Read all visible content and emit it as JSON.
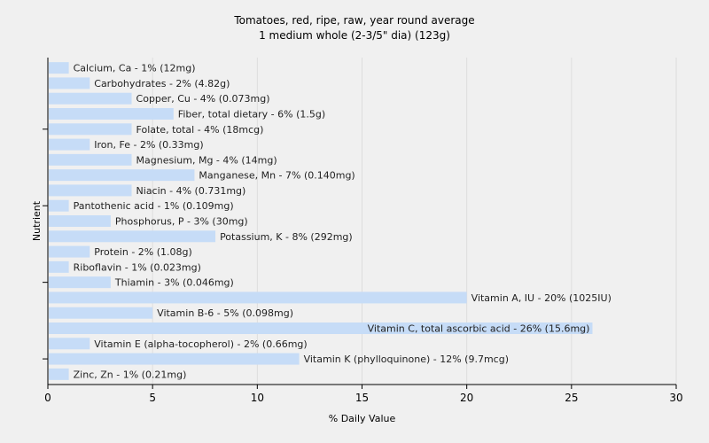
{
  "chart_data": {
    "type": "bar",
    "orientation": "horizontal",
    "title": "Tomatoes, red, ripe, raw, year round average",
    "subtitle": "1 medium whole (2-3/5\" dia) (123g)",
    "xlabel": "% Daily Value",
    "ylabel": "Nutrient",
    "xlim": [
      0,
      30
    ],
    "xticks": [
      0,
      5,
      10,
      15,
      20,
      25,
      30
    ],
    "grid": true,
    "bar_color": "#c6dcf7",
    "grid_color": "#dddddd",
    "background": "#f0f0f0",
    "categories": [
      "Calcium, Ca",
      "Carbohydrates",
      "Copper, Cu",
      "Fiber, total dietary",
      "Folate, total",
      "Iron, Fe",
      "Magnesium, Mg",
      "Manganese, Mn",
      "Niacin",
      "Pantothenic acid",
      "Phosphorus, P",
      "Potassium, K",
      "Protein",
      "Riboflavin",
      "Thiamin",
      "Vitamin A, IU",
      "Vitamin B-6",
      "Vitamin C, total ascorbic acid",
      "Vitamin E (alpha-tocopherol)",
      "Vitamin K (phylloquinone)",
      "Zinc, Zn"
    ],
    "values": [
      1,
      2,
      4,
      6,
      4,
      2,
      4,
      7,
      4,
      1,
      3,
      8,
      2,
      1,
      3,
      20,
      5,
      26,
      2,
      12,
      1
    ],
    "labels": [
      "Calcium, Ca - 1% (12mg)",
      "Carbohydrates - 2% (4.82g)",
      "Copper, Cu - 4% (0.073mg)",
      "Fiber, total dietary - 6% (1.5g)",
      "Folate, total - 4% (18mcg)",
      "Iron, Fe - 2% (0.33mg)",
      "Magnesium, Mg - 4% (14mg)",
      "Manganese, Mn - 7% (0.140mg)",
      "Niacin - 4% (0.731mg)",
      "Pantothenic acid - 1% (0.109mg)",
      "Phosphorus, P - 3% (30mg)",
      "Potassium, K - 8% (292mg)",
      "Protein - 2% (1.08g)",
      "Riboflavin - 1% (0.023mg)",
      "Thiamin - 3% (0.046mg)",
      "Vitamin A, IU - 20% (1025IU)",
      "Vitamin B-6 - 5% (0.098mg)",
      "Vitamin C, total ascorbic acid - 26% (15.6mg)",
      "Vitamin E (alpha-tocopherol) - 2% (0.66mg)",
      "Vitamin K (phylloquinone) - 12% (9.7mcg)",
      "Zinc, Zn - 1% (0.21mg)"
    ]
  }
}
